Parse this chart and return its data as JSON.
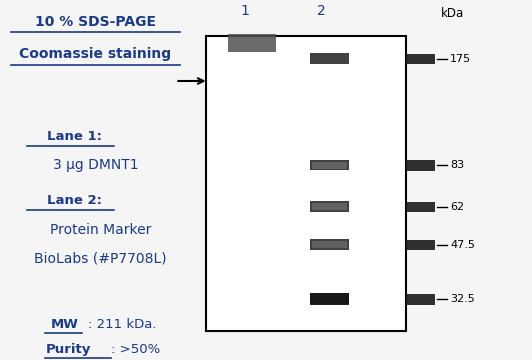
{
  "title_line1": "10 % SDS-PAGE",
  "title_line2": "Coomassie staining",
  "lane1_label": "Lane 1",
  "lane1_text": "3 μg DMNT1",
  "lane2_label": "Lane 2",
  "lane2_text1": "Protein Marker",
  "lane2_text2": "BioLabs (#P7708L)",
  "mw_label": "MW",
  "mw_value": ": 211 kDa.",
  "purity_label": "Purity",
  "purity_value": ": >50%",
  "kda_label": "kDa",
  "marker_sizes": [
    175,
    83,
    62,
    47.5,
    32.5
  ],
  "text_color": "#1a3a8a",
  "background_color": "#f0f0f0",
  "gel_background": "#e8e8e8",
  "gel_box_color": "#000000"
}
